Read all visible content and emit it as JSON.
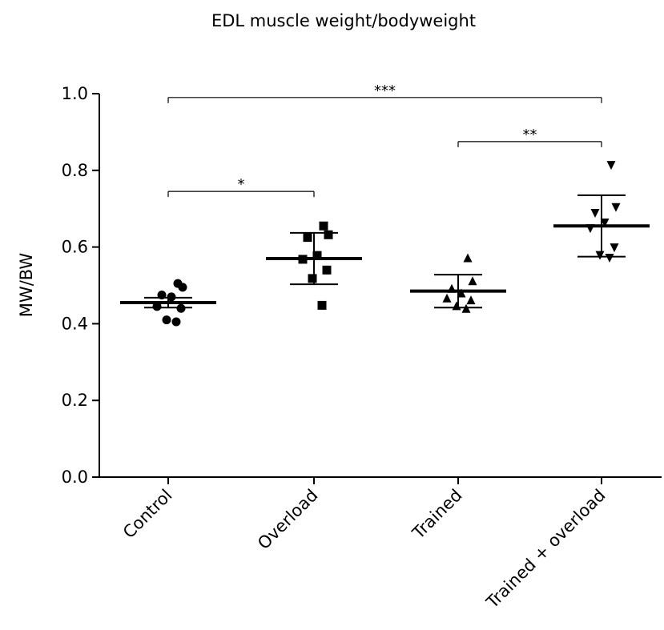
{
  "chart_data": {
    "type": "scatter",
    "title": "EDL muscle weight/bodyweight",
    "xlabel": "",
    "ylabel": "MW/BW",
    "ylim": [
      0.0,
      1.0
    ],
    "yticks": [
      "0.0",
      "0.2",
      "0.4",
      "0.6",
      "0.8",
      "1.0"
    ],
    "grid": false,
    "categories": [
      "Control",
      "Overload",
      "Trained",
      "Trained + overload"
    ],
    "series": [
      {
        "category": "Control",
        "marker": "circle",
        "points": [
          0.505,
          0.495,
          0.475,
          0.47,
          0.445,
          0.44,
          0.41,
          0.405
        ],
        "mean": 0.455,
        "sd_upper": 0.468,
        "sd_lower": 0.442
      },
      {
        "category": "Overload",
        "marker": "square",
        "points": [
          0.655,
          0.632,
          0.625,
          0.578,
          0.568,
          0.54,
          0.518,
          0.448
        ],
        "mean": 0.57,
        "sd_upper": 0.637,
        "sd_lower": 0.503
      },
      {
        "category": "Trained",
        "marker": "triangle-up",
        "points": [
          0.57,
          0.51,
          0.49,
          0.478,
          0.465,
          0.46,
          0.445,
          0.438
        ],
        "mean": 0.485,
        "sd_upper": 0.528,
        "sd_lower": 0.442
      },
      {
        "category": "Trained + overload",
        "marker": "triangle-down",
        "points": [
          0.815,
          0.705,
          0.69,
          0.665,
          0.65,
          0.6,
          0.58,
          0.573
        ],
        "mean": 0.655,
        "sd_upper": 0.735,
        "sd_lower": 0.575
      }
    ],
    "significance": [
      {
        "from": 0,
        "to": 3,
        "y": 0.99,
        "label": "***"
      },
      {
        "from": 2,
        "to": 3,
        "y": 0.875,
        "label": "**"
      },
      {
        "from": 0,
        "to": 1,
        "y": 0.745,
        "label": "*"
      }
    ]
  }
}
